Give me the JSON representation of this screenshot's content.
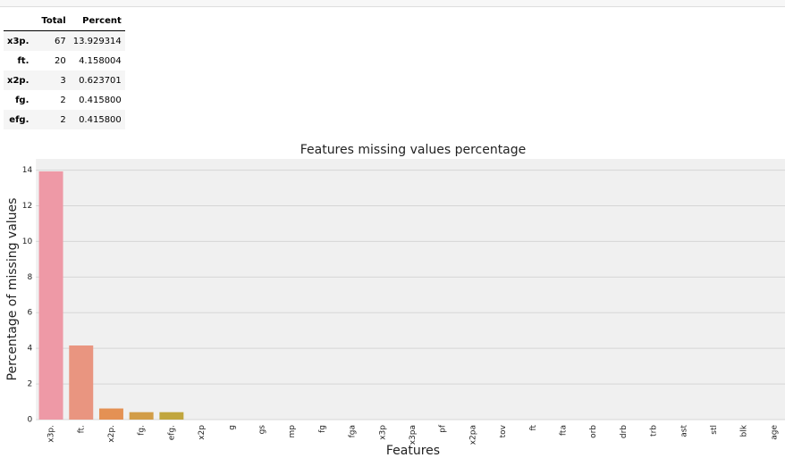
{
  "table": {
    "columns": [
      "Total",
      "Percent"
    ],
    "rows": [
      [
        "x3p.",
        "67",
        "13.929314"
      ],
      [
        "ft.",
        "20",
        "4.158004"
      ],
      [
        "x2p.",
        "3",
        "0.623701"
      ],
      [
        "fg.",
        "2",
        "0.415800"
      ],
      [
        "efg.",
        "2",
        "0.415800"
      ]
    ]
  },
  "chart_data": {
    "type": "bar",
    "title": "Features missing values percentage",
    "x_label": "Features",
    "y_label": "Percentage of missing values",
    "categories": [
      "x3p.",
      "ft.",
      "x2p.",
      "fg.",
      "efg.",
      "x2p",
      "g",
      "gs",
      "mp",
      "fg",
      "fga",
      "x3p",
      "x3pa",
      "pf",
      "x2pa",
      "tov",
      "ft",
      "fta",
      "orb",
      "drb",
      "trb",
      "ast",
      "stl",
      "blk",
      "age"
    ],
    "values": [
      13.929314,
      4.158004,
      0.623701,
      0.4158,
      0.4158,
      0,
      0,
      0,
      0,
      0,
      0,
      0,
      0,
      0,
      0,
      0,
      0,
      0,
      0,
      0,
      0,
      0,
      0,
      0,
      0
    ],
    "colors": [
      "#ee99a6",
      "#e99580",
      "#e49154",
      "#d29d48",
      "#c1a63e",
      "#b0ab3f",
      "#9cb03f",
      "#80b64a",
      "#5db95c",
      "#3fbb7a",
      "#3cba93",
      "#3db9a5",
      "#3fb8b4",
      "#41b6c3",
      "#43b3d2",
      "#52acdf",
      "#74a4e8",
      "#949aee",
      "#af90f1",
      "#c586f1",
      "#d77eec",
      "#e37ade",
      "#ea80c9",
      "#ec87b8",
      "#ed8fab"
    ],
    "ylim": [
      0,
      14.63
    ],
    "yticks": [
      0,
      2,
      4,
      6,
      8,
      10,
      12,
      14
    ],
    "grid": true
  }
}
